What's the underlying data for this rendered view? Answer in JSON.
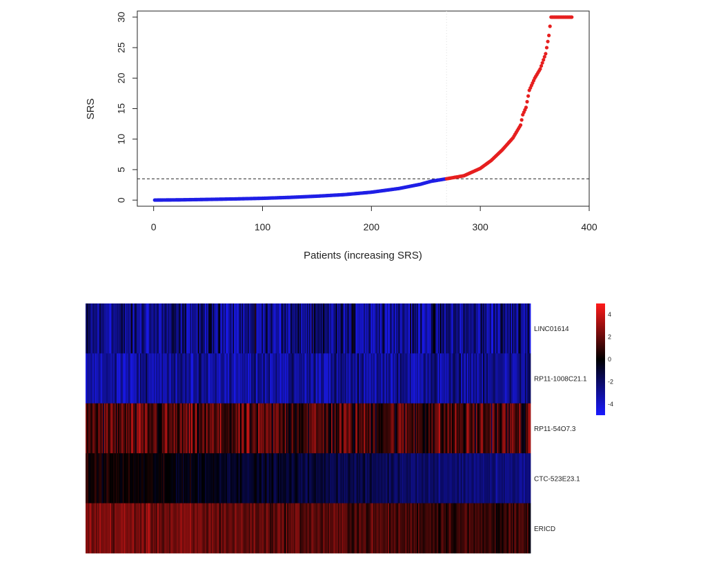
{
  "chart_data": [
    {
      "type": "scatter",
      "xlabel": "Patients (increasing SRS)",
      "ylabel": "SRS",
      "xlim": [
        -15,
        400
      ],
      "ylim": [
        -1,
        31
      ],
      "x_ticks": [
        0,
        100,
        200,
        300,
        400
      ],
      "y_ticks": [
        0,
        5,
        10,
        15,
        20,
        25,
        30
      ],
      "grid": false,
      "threshold": {
        "y": 3.5,
        "style": "dashed"
      },
      "cutoff_x": 269,
      "n_points": 384,
      "colors": {
        "low": "#1f1fe6",
        "high": "#e61f1f"
      },
      "curve_anchors": [
        [
          1,
          0.01
        ],
        [
          25,
          0.05
        ],
        [
          50,
          0.12
        ],
        [
          75,
          0.2
        ],
        [
          100,
          0.3
        ],
        [
          125,
          0.45
        ],
        [
          150,
          0.65
        ],
        [
          175,
          0.9
        ],
        [
          200,
          1.3
        ],
        [
          225,
          1.9
        ],
        [
          245,
          2.6
        ],
        [
          255,
          3.1
        ],
        [
          269,
          3.5
        ],
        [
          285,
          4.0
        ],
        [
          300,
          5.2
        ],
        [
          310,
          6.5
        ],
        [
          320,
          8.2
        ],
        [
          330,
          10.2
        ],
        [
          337,
          12.3
        ],
        [
          339,
          14.0
        ],
        [
          342,
          15.2
        ],
        [
          345,
          18.0
        ],
        [
          350,
          20.0
        ],
        [
          355,
          21.5
        ],
        [
          360,
          24.0
        ],
        [
          363,
          27.0
        ],
        [
          365,
          30.0
        ],
        [
          384,
          30.0
        ]
      ]
    },
    {
      "type": "heatmap",
      "rows": [
        "LINC01614",
        "RP11-1008C21.1",
        "RP11-54O7.3",
        "CTC-523E23.1",
        "ERICD"
      ],
      "n_columns": 384,
      "color_scale": {
        "low": "#1f1fe6",
        "mid": "#000000",
        "high": "#e61f1f"
      },
      "scale_ticks": [
        4,
        2,
        0,
        -2,
        -4
      ],
      "scale_range": [
        -5,
        5
      ],
      "row_profiles": [
        {
          "base": -3.0,
          "trend": 0.0,
          "noise": 2.4
        },
        {
          "base": -3.5,
          "trend": 0.3,
          "noise": 1.6
        },
        {
          "base": 1.5,
          "trend": 0.0,
          "noise": 2.2
        },
        {
          "base": 0.5,
          "trend": -3.5,
          "noise": 0.8
        },
        {
          "base": 2.8,
          "trend": -1.8,
          "noise": 1.1
        }
      ]
    }
  ]
}
